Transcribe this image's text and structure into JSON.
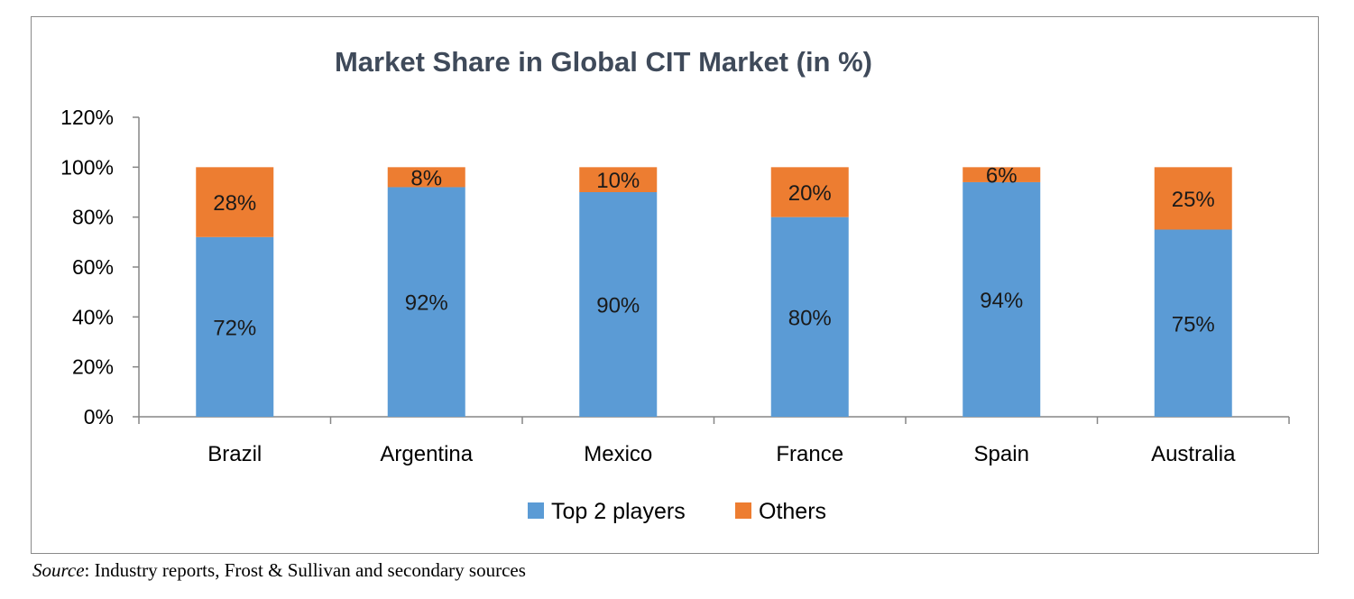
{
  "source": {
    "label": "Source",
    "text": ": Industry reports, Frost & Sullivan and secondary sources"
  },
  "chart_data": {
    "type": "bar",
    "stacked": true,
    "title": "Market Share in Global CIT Market (in %)",
    "xlabel": "",
    "ylabel": "",
    "ylim": [
      0,
      120
    ],
    "yticks": [
      "0%",
      "20%",
      "40%",
      "60%",
      "80%",
      "100%",
      "120%"
    ],
    "categories": [
      "Brazil",
      "Argentina",
      "Mexico",
      "France",
      "Spain",
      "Australia"
    ],
    "series": [
      {
        "name": "Top 2 players",
        "color": "#5b9bd5",
        "values": [
          72,
          92,
          90,
          80,
          94,
          75
        ],
        "labels": [
          "72%",
          "92%",
          "90%",
          "80%",
          "94%",
          "75%"
        ]
      },
      {
        "name": "Others",
        "color": "#ed7d31",
        "values": [
          28,
          8,
          10,
          20,
          6,
          25
        ],
        "labels": [
          "28%",
          "8%",
          "10%",
          "20%",
          "6%",
          "25%"
        ]
      }
    ],
    "legend": "bottom",
    "grid": false
  }
}
